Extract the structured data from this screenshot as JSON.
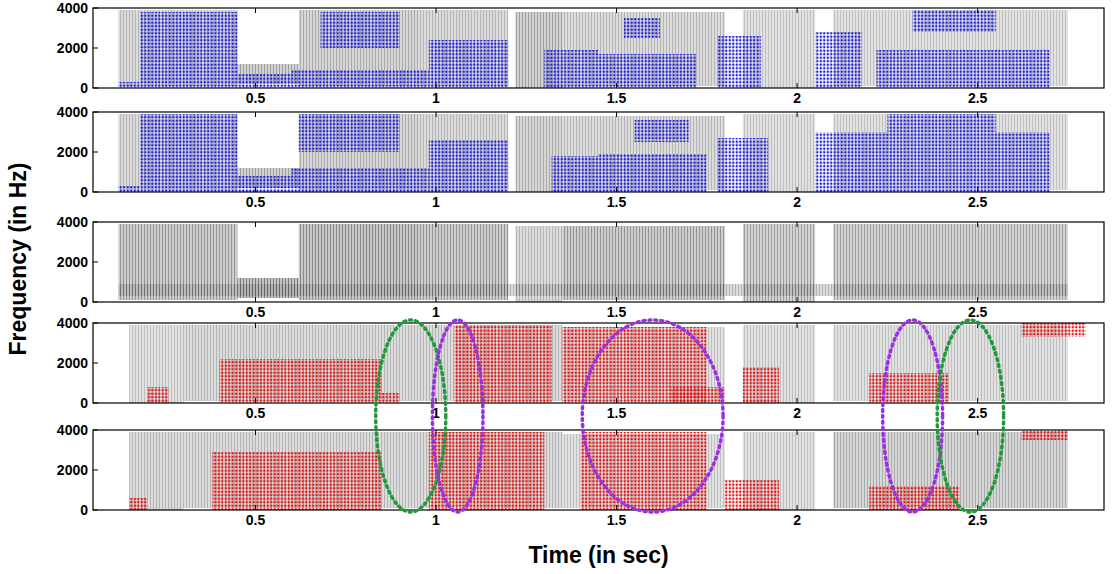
{
  "chart_data": [
    {
      "type": "spectrogram",
      "xlim": [
        0.05,
        2.85
      ],
      "ylim": [
        0,
        4000
      ],
      "xticks": [
        0.5,
        1,
        1.5,
        2,
        2.5
      ],
      "yticks": [
        0,
        2000,
        4000
      ],
      "color": "#1f1fd6",
      "energy": [
        [
          0.12,
          0.45,
          100,
          3900,
          0.35
        ],
        [
          0.45,
          0.62,
          200,
          1200,
          0.45
        ],
        [
          0.62,
          0.95,
          100,
          3900,
          0.4
        ],
        [
          0.95,
          1.2,
          100,
          3900,
          0.35
        ],
        [
          1.22,
          1.35,
          0,
          3800,
          0.45
        ],
        [
          1.35,
          1.8,
          100,
          3800,
          0.35
        ],
        [
          1.85,
          2.05,
          0,
          3900,
          0.3
        ],
        [
          2.1,
          2.75,
          100,
          3900,
          0.3
        ]
      ],
      "regions": [
        [
          0.12,
          0.45,
          0,
          300
        ],
        [
          0.18,
          0.45,
          300,
          3800
        ],
        [
          0.45,
          0.6,
          0,
          700
        ],
        [
          0.6,
          0.98,
          0,
          900
        ],
        [
          0.68,
          0.9,
          2000,
          3800
        ],
        [
          0.98,
          1.2,
          0,
          2400
        ],
        [
          1.3,
          1.45,
          0,
          1900
        ],
        [
          1.45,
          1.72,
          0,
          1700
        ],
        [
          1.52,
          1.62,
          2500,
          3500
        ],
        [
          1.78,
          1.9,
          0,
          2600
        ],
        [
          2.05,
          2.18,
          0,
          2800
        ],
        [
          2.22,
          2.7,
          0,
          1900
        ],
        [
          2.32,
          2.55,
          2800,
          3900
        ]
      ]
    },
    {
      "type": "spectrogram",
      "xlim": [
        0.05,
        2.85
      ],
      "ylim": [
        0,
        4000
      ],
      "xticks": [
        0.5,
        1,
        1.5,
        2,
        2.5
      ],
      "yticks": [
        0,
        2000,
        4000
      ],
      "color": "#1f1fd6",
      "energy": [
        [
          0.12,
          0.45,
          100,
          3900,
          0.35
        ],
        [
          0.45,
          0.62,
          200,
          1200,
          0.45
        ],
        [
          0.62,
          0.95,
          100,
          3900,
          0.4
        ],
        [
          0.95,
          1.2,
          100,
          3900,
          0.35
        ],
        [
          1.22,
          1.35,
          0,
          3800,
          0.4
        ],
        [
          1.35,
          1.8,
          100,
          3800,
          0.35
        ],
        [
          1.85,
          2.05,
          0,
          3900,
          0.3
        ],
        [
          2.1,
          2.75,
          100,
          3900,
          0.3
        ]
      ],
      "regions": [
        [
          0.12,
          0.45,
          0,
          300
        ],
        [
          0.18,
          0.45,
          300,
          3900
        ],
        [
          0.45,
          0.6,
          0,
          800
        ],
        [
          0.6,
          0.98,
          0,
          1200
        ],
        [
          0.62,
          0.9,
          2000,
          3900
        ],
        [
          0.98,
          1.2,
          0,
          2600
        ],
        [
          1.32,
          1.45,
          0,
          1800
        ],
        [
          1.45,
          1.75,
          0,
          1900
        ],
        [
          1.55,
          1.7,
          2500,
          3600
        ],
        [
          1.78,
          1.92,
          0,
          2700
        ],
        [
          2.05,
          2.7,
          0,
          3000
        ],
        [
          2.25,
          2.55,
          3000,
          3900
        ]
      ]
    },
    {
      "type": "spectrogram",
      "xlim": [
        0.05,
        2.85
      ],
      "ylim": [
        0,
        4000
      ],
      "xticks": [
        0.5,
        1,
        1.5,
        2,
        2.5
      ],
      "yticks": [
        0,
        2000,
        4000
      ],
      "ylabel": "Frequency (in Hz)",
      "energy": [
        [
          0.12,
          0.45,
          100,
          3900,
          0.5
        ],
        [
          0.45,
          0.62,
          200,
          1200,
          0.6
        ],
        [
          0.62,
          0.95,
          100,
          3900,
          0.55
        ],
        [
          0.95,
          1.2,
          100,
          3900,
          0.5
        ],
        [
          1.22,
          1.35,
          0,
          3800,
          0.35
        ],
        [
          1.35,
          1.8,
          100,
          3800,
          0.5
        ],
        [
          1.85,
          2.05,
          0,
          3900,
          0.45
        ],
        [
          2.1,
          2.75,
          100,
          3900,
          0.45
        ],
        [
          0.12,
          2.75,
          300,
          900,
          0.35
        ]
      ]
    },
    {
      "type": "spectrogram",
      "xlim": [
        0.05,
        2.85
      ],
      "ylim": [
        0,
        4000
      ],
      "xticks": [
        0.5,
        1,
        1.5,
        2,
        2.5
      ],
      "yticks": [
        0,
        2000,
        4000
      ],
      "color": "#e01010",
      "energy": [
        [
          0.15,
          0.3,
          0,
          3900,
          0.3
        ],
        [
          0.3,
          0.95,
          100,
          3900,
          0.35
        ],
        [
          0.95,
          1.35,
          100,
          3900,
          0.35
        ],
        [
          1.35,
          1.8,
          100,
          3800,
          0.3
        ],
        [
          1.85,
          2.05,
          0,
          3900,
          0.3
        ],
        [
          2.1,
          2.75,
          100,
          3900,
          0.3
        ]
      ],
      "regions": [
        [
          0.2,
          0.26,
          0,
          800
        ],
        [
          0.4,
          0.85,
          0,
          2200
        ],
        [
          0.85,
          0.9,
          0,
          500
        ],
        [
          1.05,
          1.32,
          0,
          3900
        ],
        [
          1.35,
          1.75,
          0,
          3800
        ],
        [
          1.65,
          1.8,
          0,
          800
        ],
        [
          1.85,
          1.95,
          0,
          1800
        ],
        [
          2.2,
          2.42,
          0,
          1500
        ],
        [
          2.62,
          2.8,
          3300,
          4000
        ]
      ],
      "ellipses": [
        {
          "t": 0.93,
          "half_width": 0.097,
          "color": "#1f9a3a",
          "line_style": "dotted"
        },
        {
          "t": 1.06,
          "half_width": 0.07,
          "color": "#9b30e0",
          "line_style": "dotted"
        },
        {
          "t": 1.6,
          "half_width": 0.195,
          "color": "#9b30e0",
          "line_style": "dotted"
        },
        {
          "t": 2.32,
          "half_width": 0.083,
          "color": "#9b30e0",
          "line_style": "dotted"
        },
        {
          "t": 2.48,
          "half_width": 0.092,
          "color": "#1f9a3a",
          "line_style": "dotted"
        }
      ]
    },
    {
      "type": "spectrogram",
      "xlim": [
        0.05,
        2.85
      ],
      "ylim": [
        0,
        4000
      ],
      "xticks": [
        0.5,
        1,
        1.5,
        2,
        2.5
      ],
      "yticks": [
        0,
        2000,
        4000
      ],
      "color": "#e01010",
      "xlabel": "Time (in sec)",
      "energy": [
        [
          0.15,
          0.3,
          0,
          3900,
          0.35
        ],
        [
          0.3,
          0.95,
          100,
          3900,
          0.35
        ],
        [
          0.95,
          1.35,
          100,
          3900,
          0.35
        ],
        [
          1.35,
          1.8,
          100,
          3800,
          0.3
        ],
        [
          1.85,
          2.05,
          0,
          3900,
          0.3
        ],
        [
          2.1,
          2.75,
          100,
          3900,
          0.4
        ]
      ],
      "regions": [
        [
          0.15,
          0.2,
          0,
          600
        ],
        [
          0.38,
          0.85,
          0,
          2900
        ],
        [
          0.98,
          1.3,
          0,
          3900
        ],
        [
          1.4,
          1.75,
          0,
          3900
        ],
        [
          1.8,
          1.95,
          0,
          1500
        ],
        [
          2.2,
          2.45,
          0,
          1200
        ],
        [
          2.62,
          2.75,
          3500,
          4000
        ]
      ]
    }
  ]
}
